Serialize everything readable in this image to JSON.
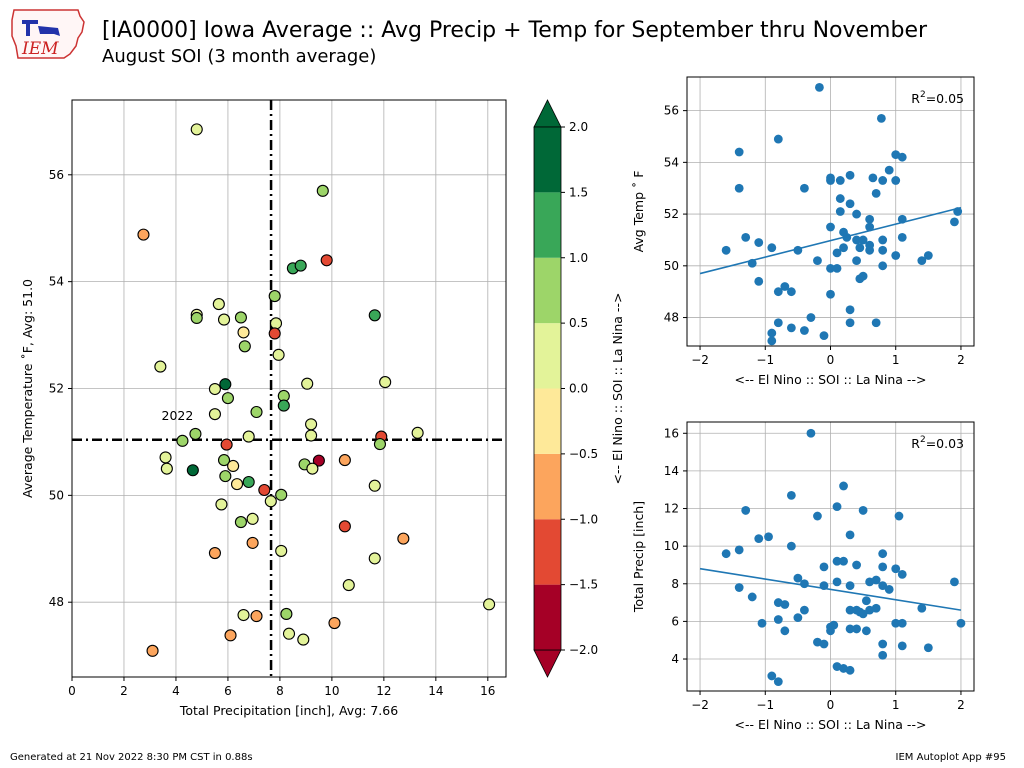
{
  "header": {
    "title": "[IA0000] Iowa Average :: Avg Precip + Temp for September thru November",
    "subtitle": "August SOI (3 month average)",
    "logo_text": "IEM"
  },
  "footer": {
    "generated": "Generated at 21 Nov 2022 8:30 PM CST in 0.88s",
    "app": "IEM Autoplot App #95"
  },
  "colors": {
    "point_blue": "#1f77b4",
    "crosshair": "#000000",
    "grid": "#b0b0b0",
    "bins": [
      "#a50026",
      "#e34933",
      "#fca55d",
      "#fee999",
      "#e3f399",
      "#9dd569",
      "#39a758",
      "#006837"
    ]
  },
  "chart_data": [
    {
      "type": "scatter",
      "xlabel": "Total Precipitation [inch], Avg: 7.66",
      "ylabel": "Average Temperature ˚F, Avg: 51.0",
      "xlim": [
        0,
        16.7
      ],
      "ylim": [
        46.6,
        57.4
      ],
      "xticks": [
        0,
        2,
        4,
        6,
        8,
        10,
        12,
        14,
        16
      ],
      "yticks": [
        48,
        50,
        52,
        54,
        56
      ],
      "grid": true,
      "avg_precip": 7.66,
      "avg_temp": 51.04,
      "annotation": {
        "text": "2022",
        "x": 4.75,
        "y": 51.15
      },
      "points": [
        [
          4.8,
          56.85,
          0.3
        ],
        [
          2.75,
          54.88,
          -0.8
        ],
        [
          9.65,
          55.7,
          0.8
        ],
        [
          9.8,
          54.4,
          -1.3
        ],
        [
          8.5,
          54.25,
          1.2
        ],
        [
          8.8,
          54.3,
          1.2
        ],
        [
          11.65,
          53.37,
          1.2
        ],
        [
          4.8,
          53.38,
          0.3
        ],
        [
          4.8,
          53.32,
          0.7
        ],
        [
          5.65,
          53.58,
          0.3
        ],
        [
          5.85,
          53.29,
          0.3
        ],
        [
          6.5,
          53.33,
          0.7
        ],
        [
          6.6,
          53.05,
          -0.3
        ],
        [
          7.8,
          53.73,
          0.7
        ],
        [
          7.85,
          53.22,
          0.3
        ],
        [
          7.8,
          53.03,
          -1.3
        ],
        [
          6.65,
          52.79,
          0.7
        ],
        [
          7.95,
          52.63,
          0.3
        ],
        [
          3.4,
          52.41,
          0.3
        ],
        [
          5.5,
          51.99,
          0.3
        ],
        [
          5.9,
          52.08,
          1.7
        ],
        [
          6.0,
          51.82,
          0.7
        ],
        [
          8.15,
          51.86,
          0.7
        ],
        [
          9.05,
          52.09,
          0.3
        ],
        [
          12.05,
          52.12,
          0.3
        ],
        [
          5.5,
          51.52,
          0.3
        ],
        [
          7.1,
          51.56,
          0.7
        ],
        [
          8.15,
          51.68,
          1.2
        ],
        [
          9.2,
          51.33,
          0.3
        ],
        [
          9.2,
          51.12,
          0.3
        ],
        [
          4.25,
          51.02,
          0.7
        ],
        [
          4.75,
          51.15,
          0.7
        ],
        [
          6.8,
          51.1,
          0.3
        ],
        [
          5.95,
          50.95,
          -1.3
        ],
        [
          11.9,
          51.1,
          -1.3
        ],
        [
          11.85,
          50.96,
          0.7
        ],
        [
          13.3,
          51.17,
          0.3
        ],
        [
          3.6,
          50.71,
          0.3
        ],
        [
          3.65,
          50.5,
          0.3
        ],
        [
          5.85,
          50.66,
          0.7
        ],
        [
          6.2,
          50.55,
          -0.3
        ],
        [
          9.5,
          50.65,
          -1.7
        ],
        [
          8.95,
          50.58,
          0.7
        ],
        [
          9.25,
          50.5,
          0.3
        ],
        [
          10.5,
          50.66,
          -0.8
        ],
        [
          4.65,
          50.47,
          1.7
        ],
        [
          5.9,
          50.36,
          0.7
        ],
        [
          6.35,
          50.21,
          -0.3
        ],
        [
          6.8,
          50.25,
          1.2
        ],
        [
          7.4,
          50.1,
          -1.3
        ],
        [
          7.65,
          49.89,
          0.3
        ],
        [
          8.05,
          50.01,
          0.7
        ],
        [
          11.65,
          50.18,
          0.3
        ],
        [
          5.75,
          49.83,
          0.3
        ],
        [
          6.5,
          49.5,
          0.7
        ],
        [
          6.95,
          49.56,
          0.3
        ],
        [
          10.5,
          49.42,
          -1.3
        ],
        [
          5.5,
          48.92,
          -0.8
        ],
        [
          6.95,
          49.11,
          -0.8
        ],
        [
          8.05,
          48.96,
          0.3
        ],
        [
          11.65,
          48.82,
          0.3
        ],
        [
          12.75,
          49.19,
          -0.8
        ],
        [
          10.65,
          48.32,
          0.3
        ],
        [
          6.6,
          47.76,
          0.3
        ],
        [
          7.1,
          47.74,
          -0.8
        ],
        [
          8.25,
          47.78,
          0.7
        ],
        [
          10.1,
          47.61,
          -0.8
        ],
        [
          6.1,
          47.38,
          -0.8
        ],
        [
          8.35,
          47.41,
          0.3
        ],
        [
          8.9,
          47.3,
          0.3
        ],
        [
          3.1,
          47.09,
          -0.8
        ],
        [
          16.05,
          47.96,
          0.3
        ]
      ]
    },
    {
      "type": "colorbar",
      "label": "<-- El Nino :: SOI :: La Nina -->",
      "range": [
        -2.0,
        2.0
      ],
      "boundaries": [
        -2.0,
        -1.5,
        -1.0,
        -0.5,
        0.0,
        0.5,
        1.0,
        1.5,
        2.0
      ],
      "tick_labels": [
        "−2.0",
        "−1.5",
        "−1.0",
        "−0.5",
        "0.0",
        "0.5",
        "1.0",
        "1.5",
        "2.0"
      ]
    },
    {
      "type": "scatter",
      "xlabel": "<-- El Nino :: SOI :: La Nina -->",
      "ylabel": "Avg Temp ˚ F",
      "xlim": [
        -2.2,
        2.2
      ],
      "ylim": [
        46.9,
        57.3
      ],
      "xticks": [
        -2,
        -1,
        0,
        1,
        2
      ],
      "xtick_labels": [
        "−2",
        "−1",
        "0",
        "1",
        "2"
      ],
      "yticks": [
        48,
        50,
        52,
        54,
        56
      ],
      "grid": true,
      "r2_label": "R",
      "r2_value": "=0.05",
      "fit_line": [
        [
          -2.0,
          49.7
        ],
        [
          2.0,
          52.25
        ]
      ],
      "points": [
        [
          -0.17,
          56.9
        ],
        [
          -1.4,
          54.4
        ],
        [
          -0.8,
          54.9
        ],
        [
          -1.4,
          53.0
        ],
        [
          -0.4,
          53.0
        ],
        [
          0.0,
          53.3
        ],
        [
          0.0,
          53.4
        ],
        [
          0.15,
          53.3
        ],
        [
          0.3,
          53.5
        ],
        [
          0.65,
          53.4
        ],
        [
          0.8,
          53.3
        ],
        [
          0.9,
          53.7
        ],
        [
          1.0,
          54.3
        ],
        [
          1.1,
          54.2
        ],
        [
          0.78,
          55.7
        ],
        [
          1.0,
          53.3
        ],
        [
          0.15,
          52.6
        ],
        [
          0.3,
          52.4
        ],
        [
          0.7,
          52.8
        ],
        [
          0.15,
          52.1
        ],
        [
          0.4,
          52.0
        ],
        [
          0.6,
          51.8
        ],
        [
          1.1,
          51.8
        ],
        [
          1.95,
          52.1
        ],
        [
          1.9,
          51.7
        ],
        [
          -1.3,
          51.1
        ],
        [
          -1.1,
          50.9
        ],
        [
          -0.9,
          50.7
        ],
        [
          0.0,
          51.5
        ],
        [
          0.2,
          51.3
        ],
        [
          0.25,
          51.1
        ],
        [
          0.4,
          51.0
        ],
        [
          0.5,
          51.0
        ],
        [
          0.6,
          51.5
        ],
        [
          0.8,
          51.0
        ],
        [
          1.1,
          51.1
        ],
        [
          -1.6,
          50.6
        ],
        [
          -1.2,
          50.1
        ],
        [
          -0.5,
          50.6
        ],
        [
          0.1,
          50.5
        ],
        [
          0.2,
          50.7
        ],
        [
          0.45,
          50.7
        ],
        [
          0.6,
          50.6
        ],
        [
          0.6,
          50.8
        ],
        [
          0.8,
          50.6
        ],
        [
          1.0,
          50.4
        ],
        [
          1.5,
          50.4
        ],
        [
          1.4,
          50.2
        ],
        [
          -0.2,
          50.2
        ],
        [
          0.0,
          49.9
        ],
        [
          0.1,
          49.9
        ],
        [
          0.4,
          50.2
        ],
        [
          0.45,
          49.5
        ],
        [
          0.5,
          49.6
        ],
        [
          0.8,
          50.0
        ],
        [
          -1.1,
          49.4
        ],
        [
          -0.7,
          49.2
        ],
        [
          -0.8,
          49.0
        ],
        [
          -0.6,
          49.0
        ],
        [
          -0.3,
          48.0
        ],
        [
          0.0,
          48.9
        ],
        [
          0.3,
          48.3
        ],
        [
          -0.8,
          47.8
        ],
        [
          -0.9,
          47.4
        ],
        [
          -0.6,
          47.6
        ],
        [
          -0.4,
          47.5
        ],
        [
          -0.1,
          47.3
        ],
        [
          0.3,
          47.8
        ],
        [
          0.7,
          47.8
        ],
        [
          -0.9,
          47.1
        ]
      ]
    },
    {
      "type": "scatter",
      "xlabel": "<-- El Nino :: SOI :: La Nina -->",
      "ylabel": "Total Precip [inch]",
      "xlim": [
        -2.2,
        2.2
      ],
      "ylim": [
        2.3,
        16.6
      ],
      "xticks": [
        -2,
        -1,
        0,
        1,
        2
      ],
      "xtick_labels": [
        "−2",
        "−1",
        "0",
        "1",
        "2"
      ],
      "yticks": [
        4,
        6,
        8,
        10,
        12,
        14,
        16
      ],
      "grid": true,
      "r2_label": "R",
      "r2_value": "=0.03",
      "fit_line": [
        [
          -2.0,
          8.8
        ],
        [
          2.0,
          6.6
        ]
      ],
      "points": [
        [
          -0.3,
          16.0
        ],
        [
          0.2,
          13.2
        ],
        [
          -0.6,
          12.7
        ],
        [
          -1.3,
          11.9
        ],
        [
          -0.2,
          11.6
        ],
        [
          0.1,
          12.1
        ],
        [
          0.5,
          11.9
        ],
        [
          1.05,
          11.6
        ],
        [
          -1.1,
          10.4
        ],
        [
          -0.95,
          10.5
        ],
        [
          0.3,
          10.6
        ],
        [
          -0.6,
          10.0
        ],
        [
          -1.6,
          9.6
        ],
        [
          -1.4,
          9.8
        ],
        [
          0.8,
          9.6
        ],
        [
          -0.1,
          8.9
        ],
        [
          0.1,
          9.2
        ],
        [
          0.2,
          9.2
        ],
        [
          0.4,
          9.0
        ],
        [
          0.8,
          8.9
        ],
        [
          1.0,
          8.8
        ],
        [
          1.1,
          8.5
        ],
        [
          1.9,
          8.1
        ],
        [
          -1.4,
          7.8
        ],
        [
          -0.5,
          8.3
        ],
        [
          -0.4,
          8.0
        ],
        [
          -0.1,
          7.9
        ],
        [
          0.1,
          8.1
        ],
        [
          0.3,
          7.9
        ],
        [
          0.6,
          8.1
        ],
        [
          0.7,
          8.2
        ],
        [
          0.8,
          7.9
        ],
        [
          0.9,
          7.7
        ],
        [
          -1.2,
          7.3
        ],
        [
          -0.8,
          7.0
        ],
        [
          -0.7,
          6.9
        ],
        [
          -0.4,
          6.6
        ],
        [
          -0.5,
          6.2
        ],
        [
          0.3,
          6.6
        ],
        [
          0.4,
          6.6
        ],
        [
          0.45,
          6.5
        ],
        [
          0.5,
          6.4
        ],
        [
          0.6,
          6.6
        ],
        [
          0.7,
          6.7
        ],
        [
          0.55,
          7.1
        ],
        [
          -1.05,
          5.9
        ],
        [
          -0.8,
          6.1
        ],
        [
          -0.7,
          5.5
        ],
        [
          0.0,
          5.7
        ],
        [
          0.0,
          5.5
        ],
        [
          0.05,
          5.8
        ],
        [
          0.3,
          5.6
        ],
        [
          0.4,
          5.6
        ],
        [
          0.55,
          5.5
        ],
        [
          1.0,
          5.9
        ],
        [
          1.1,
          5.9
        ],
        [
          1.4,
          6.7
        ],
        [
          2.0,
          5.9
        ],
        [
          -0.2,
          4.9
        ],
        [
          -0.1,
          4.8
        ],
        [
          0.8,
          4.8
        ],
        [
          0.8,
          4.2
        ],
        [
          1.1,
          4.7
        ],
        [
          1.5,
          4.6
        ],
        [
          0.1,
          3.6
        ],
        [
          0.2,
          3.5
        ],
        [
          0.3,
          3.4
        ],
        [
          -0.9,
          3.1
        ],
        [
          -0.8,
          2.8
        ]
      ]
    }
  ]
}
